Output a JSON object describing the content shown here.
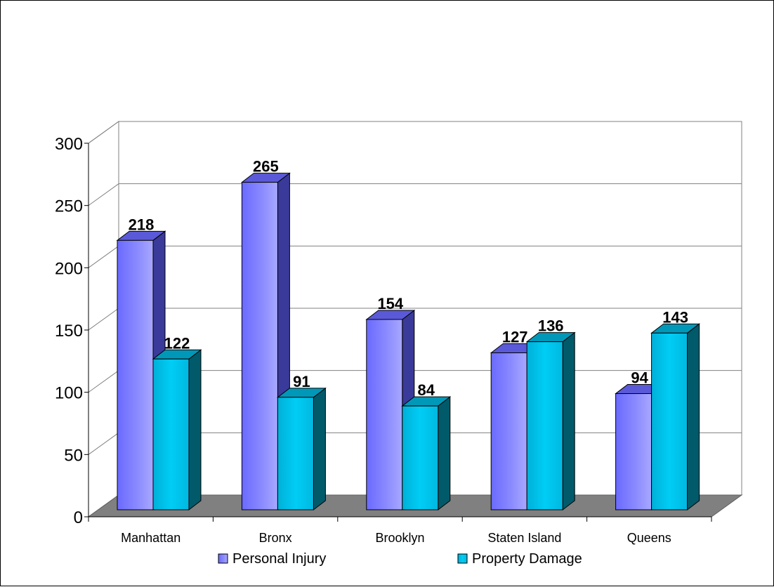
{
  "chart_data": {
    "type": "bar",
    "title": "",
    "xlabel": "",
    "ylabel": "",
    "ylim": [
      0,
      300
    ],
    "yticks": [
      0,
      50,
      100,
      150,
      200,
      250,
      300
    ],
    "grid": true,
    "legend_position": "bottom",
    "categories": [
      "Manhattan",
      "Bronx",
      "Brooklyn",
      "Staten Island",
      "Queens"
    ],
    "series": [
      {
        "name": "Personal Injury",
        "values": [
          218,
          265,
          154,
          127,
          94
        ],
        "color": "#7f7fff"
      },
      {
        "name": "Property Damage",
        "values": [
          122,
          91,
          84,
          136,
          143
        ],
        "color": "#00c8f0"
      }
    ]
  }
}
